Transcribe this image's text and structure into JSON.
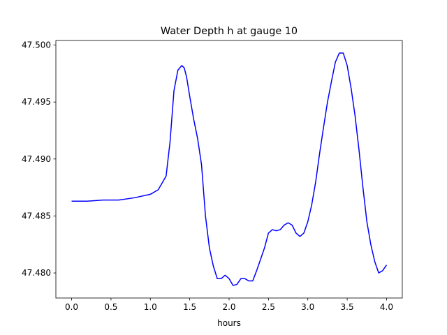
{
  "chart_data": {
    "type": "line",
    "title": "Water Depth h at gauge 10",
    "xlabel": "hours",
    "ylabel": "",
    "xlim": [
      -0.2,
      4.2
    ],
    "ylim": [
      47.4778,
      47.5004
    ],
    "xticks": [
      0.0,
      0.5,
      1.0,
      1.5,
      2.0,
      2.5,
      3.0,
      3.5,
      4.0
    ],
    "xtick_labels": [
      "0.0",
      "0.5",
      "1.0",
      "1.5",
      "2.0",
      "2.5",
      "3.0",
      "3.5",
      "4.0"
    ],
    "yticks": [
      47.48,
      47.485,
      47.49,
      47.495,
      47.5
    ],
    "ytick_labels": [
      "47.480",
      "47.485",
      "47.490",
      "47.495",
      "47.500"
    ],
    "grid": false,
    "series": [
      {
        "color": "#0000ff",
        "x": [
          0.0,
          0.2,
          0.4,
          0.6,
          0.8,
          1.0,
          1.1,
          1.2,
          1.25,
          1.3,
          1.35,
          1.4,
          1.43,
          1.46,
          1.5,
          1.55,
          1.6,
          1.65,
          1.7,
          1.75,
          1.8,
          1.85,
          1.9,
          1.95,
          2.0,
          2.05,
          2.1,
          2.15,
          2.2,
          2.25,
          2.3,
          2.35,
          2.4,
          2.45,
          2.5,
          2.55,
          2.6,
          2.65,
          2.7,
          2.75,
          2.8,
          2.85,
          2.9,
          2.95,
          3.0,
          3.05,
          3.1,
          3.15,
          3.2,
          3.25,
          3.3,
          3.35,
          3.4,
          3.45,
          3.5,
          3.55,
          3.6,
          3.65,
          3.7,
          3.75,
          3.8,
          3.85,
          3.9,
          3.95,
          4.0
        ],
        "y": [
          47.4863,
          47.4863,
          47.4864,
          47.4864,
          47.4866,
          47.4869,
          47.4873,
          47.4885,
          47.4915,
          47.496,
          47.4978,
          47.4982,
          47.498,
          47.4972,
          47.4955,
          47.4935,
          47.4918,
          47.4895,
          47.485,
          47.4822,
          47.4806,
          47.4795,
          47.4795,
          47.4798,
          47.4795,
          47.4789,
          47.479,
          47.4795,
          47.4795,
          47.4793,
          47.4793,
          47.4802,
          47.4812,
          47.4822,
          47.4835,
          47.4838,
          47.4837,
          47.4838,
          47.4842,
          47.4844,
          47.4842,
          47.4835,
          47.4832,
          47.4835,
          47.4845,
          47.486,
          47.488,
          47.4905,
          47.4928,
          47.495,
          47.4968,
          47.4985,
          47.4993,
          47.4993,
          47.4982,
          47.4962,
          47.4938,
          47.4908,
          47.4875,
          47.4845,
          47.4825,
          47.481,
          47.48,
          47.4802,
          47.4807
        ]
      }
    ]
  }
}
